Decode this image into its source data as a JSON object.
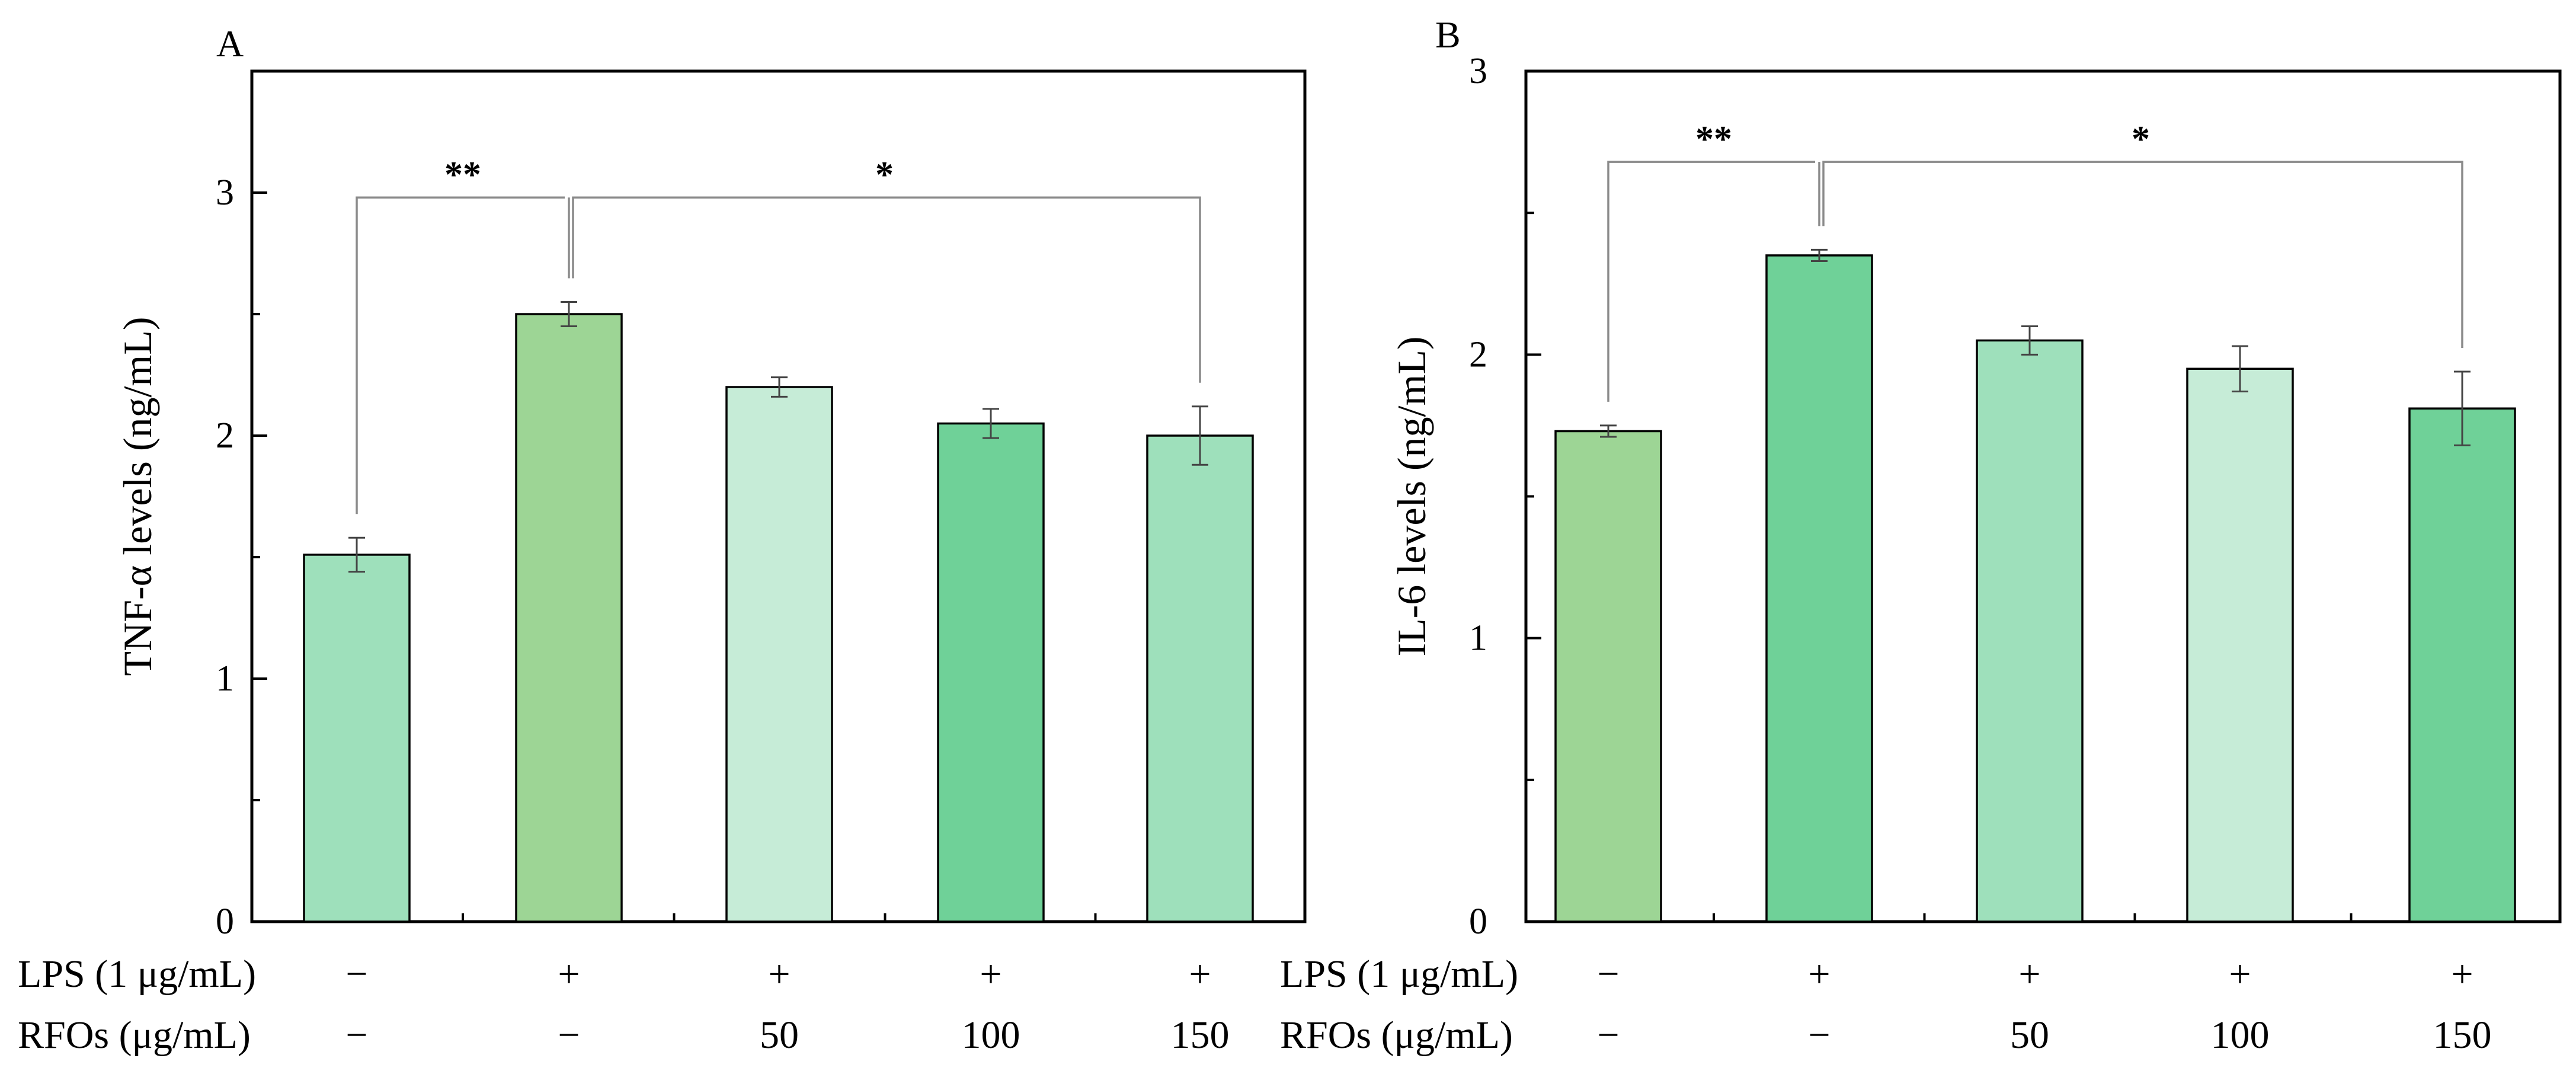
{
  "chart_data": [
    {
      "type": "bar",
      "panel_label": "A",
      "ylabel": "TNF-α levels (ng/mL)",
      "ylim": [
        0,
        3.5
      ],
      "yticks": [
        0,
        1,
        2,
        3
      ],
      "ytick_labels": [
        "0",
        "1",
        "2",
        "3"
      ],
      "values": [
        1.51,
        2.5,
        2.2,
        2.05,
        2.0
      ],
      "errors": [
        0.07,
        0.05,
        0.04,
        0.06,
        0.12
      ],
      "colors": [
        "#9ee0bb",
        "#9dd595",
        "#c6ecd7",
        "#6fd198",
        "#9ee0bb"
      ],
      "treatment_rows": [
        {
          "label": "LPS (1 μg/mL)",
          "values": [
            "−",
            "+",
            "+",
            "+",
            "+"
          ]
        },
        {
          "label": "RFOs (μg/mL)",
          "values": [
            "−",
            "−",
            "50",
            "100",
            "150"
          ]
        }
      ],
      "significance": [
        {
          "from": 0,
          "to": 1,
          "label": "**"
        },
        {
          "from": 1,
          "to": 4,
          "label": "*"
        }
      ]
    },
    {
      "type": "bar",
      "panel_label": "B",
      "ylabel": "IL-6 levels (ng/mL)",
      "ylim": [
        0,
        3
      ],
      "yticks": [
        0,
        1,
        2,
        3
      ],
      "ytick_labels": [
        "0",
        "1",
        "2",
        "3"
      ],
      "values": [
        1.73,
        2.35,
        2.05,
        1.95,
        1.81
      ],
      "errors": [
        0.02,
        0.02,
        0.05,
        0.08,
        0.13
      ],
      "colors": [
        "#9dd595",
        "#6fd198",
        "#9ee0bb",
        "#c6ecd7",
        "#6fd198"
      ],
      "treatment_rows": [
        {
          "label": "LPS (1 μg/mL)",
          "values": [
            "−",
            "+",
            "+",
            "+",
            "+"
          ]
        },
        {
          "label": "RFOs (μg/mL)",
          "values": [
            "−",
            "−",
            "50",
            "100",
            "150"
          ]
        }
      ],
      "significance": [
        {
          "from": 0,
          "to": 1,
          "label": "**"
        },
        {
          "from": 1,
          "to": 4,
          "label": "*"
        }
      ]
    }
  ]
}
